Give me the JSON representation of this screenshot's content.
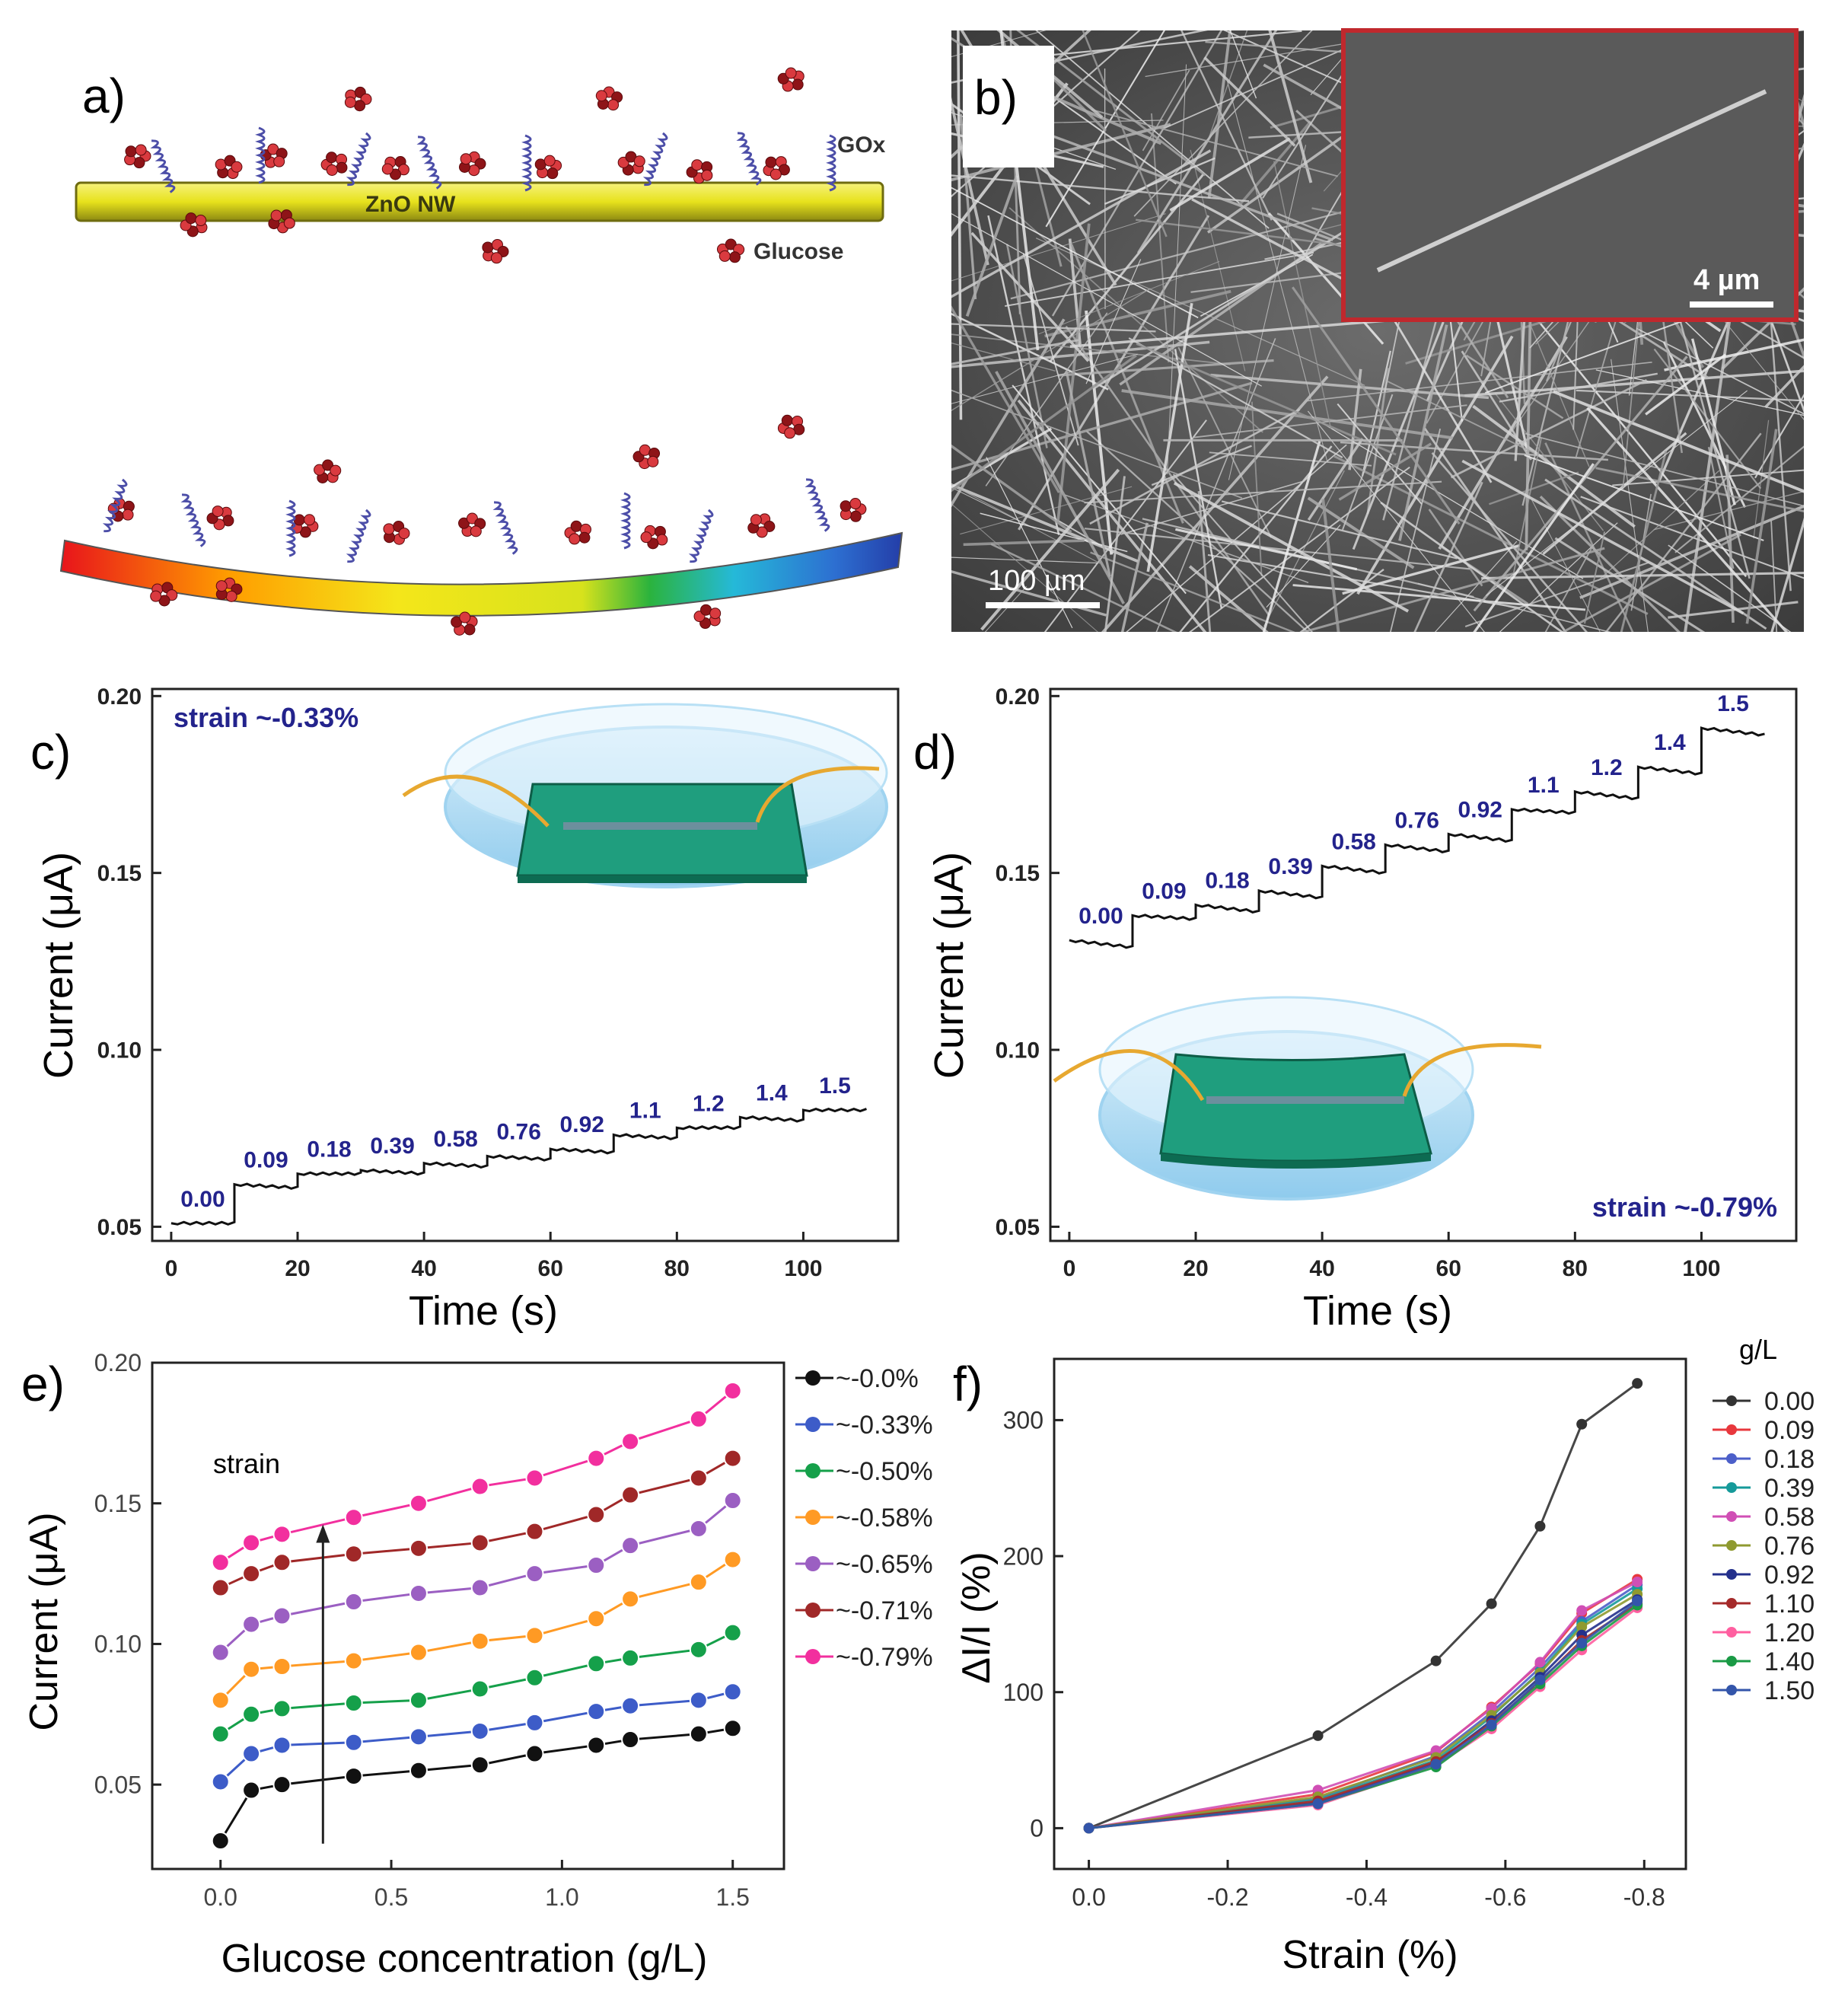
{
  "panels": {
    "a": {
      "letter": "a)",
      "labels": {
        "gox": "GOx",
        "nw": "ZnO NW",
        "glucose": "Glucose"
      }
    },
    "b": {
      "letter": "b)",
      "scale_main": "100 µm",
      "scale_inset": "4 µm"
    }
  },
  "chart_data": [
    {
      "id": "c",
      "letter": "c)",
      "type": "line",
      "xlabel": "Time (s)",
      "ylabel": "Current (μA)",
      "xlim": [
        -3,
        115
      ],
      "ylim": [
        0.046,
        0.202
      ],
      "xticks": [
        0,
        20,
        40,
        60,
        80,
        100
      ],
      "yticks": [
        0.05,
        0.1,
        0.15,
        0.2
      ],
      "annotation": "strain ~-0.33%",
      "steps": [
        {
          "label": "0.00",
          "t0": 0,
          "t1": 10,
          "y": 0.051,
          "ye": 0.051
        },
        {
          "label": "0.09",
          "t0": 10,
          "t1": 20,
          "y": 0.062,
          "ye": 0.061
        },
        {
          "label": "0.18",
          "t0": 20,
          "t1": 30,
          "y": 0.065,
          "ye": 0.065
        },
        {
          "label": "0.39",
          "t0": 30,
          "t1": 40,
          "y": 0.066,
          "ye": 0.065
        },
        {
          "label": "0.58",
          "t0": 40,
          "t1": 50,
          "y": 0.068,
          "ye": 0.067
        },
        {
          "label": "0.76",
          "t0": 50,
          "t1": 60,
          "y": 0.07,
          "ye": 0.069
        },
        {
          "label": "0.92",
          "t0": 60,
          "t1": 70,
          "y": 0.072,
          "ye": 0.071
        },
        {
          "label": "1.1",
          "t0": 70,
          "t1": 80,
          "y": 0.076,
          "ye": 0.075
        },
        {
          "label": "1.2",
          "t0": 80,
          "t1": 90,
          "y": 0.078,
          "ye": 0.078
        },
        {
          "label": "1.4",
          "t0": 90,
          "t1": 100,
          "y": 0.081,
          "ye": 0.08
        },
        {
          "label": "1.5",
          "t0": 100,
          "t1": 110,
          "y": 0.083,
          "ye": 0.083
        }
      ]
    },
    {
      "id": "d",
      "letter": "d)",
      "type": "line",
      "xlabel": "Time (s)",
      "ylabel": "Current (μA)",
      "xlim": [
        -3,
        115
      ],
      "ylim": [
        0.046,
        0.202
      ],
      "xticks": [
        0,
        20,
        40,
        60,
        80,
        100
      ],
      "yticks": [
        0.05,
        0.1,
        0.15,
        0.2
      ],
      "annotation": "strain ~-0.79%",
      "steps": [
        {
          "label": "0.00",
          "t0": 0,
          "t1": 10,
          "y": 0.131,
          "ye": 0.129
        },
        {
          "label": "0.09",
          "t0": 10,
          "t1": 20,
          "y": 0.138,
          "ye": 0.137
        },
        {
          "label": "0.18",
          "t0": 20,
          "t1": 30,
          "y": 0.141,
          "ye": 0.139
        },
        {
          "label": "0.39",
          "t0": 30,
          "t1": 40,
          "y": 0.145,
          "ye": 0.143
        },
        {
          "label": "0.58",
          "t0": 40,
          "t1": 50,
          "y": 0.152,
          "ye": 0.15
        },
        {
          "label": "0.76",
          "t0": 50,
          "t1": 60,
          "y": 0.158,
          "ye": 0.156
        },
        {
          "label": "0.92",
          "t0": 60,
          "t1": 70,
          "y": 0.161,
          "ye": 0.159
        },
        {
          "label": "1.1",
          "t0": 70,
          "t1": 80,
          "y": 0.168,
          "ye": 0.167
        },
        {
          "label": "1.2",
          "t0": 80,
          "t1": 90,
          "y": 0.173,
          "ye": 0.171
        },
        {
          "label": "1.4",
          "t0": 90,
          "t1": 100,
          "y": 0.18,
          "ye": 0.178
        },
        {
          "label": "1.5",
          "t0": 100,
          "t1": 110,
          "y": 0.191,
          "ye": 0.189
        }
      ]
    },
    {
      "id": "e",
      "letter": "e)",
      "type": "line",
      "xlabel": "Glucose concentration (g/L)",
      "ylabel": "Current (μA)",
      "xlim": [
        -0.2,
        1.65
      ],
      "ylim": [
        0.02,
        0.2
      ],
      "xticks": [
        0.0,
        0.5,
        1.0,
        1.5
      ],
      "yticks": [
        0.05,
        0.1,
        0.15,
        0.2
      ],
      "annotation": "strain",
      "x": [
        0,
        0.09,
        0.18,
        0.39,
        0.58,
        0.76,
        0.92,
        1.1,
        1.2,
        1.4,
        1.5
      ],
      "series": [
        {
          "name": "~-0.0%",
          "color": "#111111",
          "values": [
            0.03,
            0.048,
            0.05,
            0.053,
            0.055,
            0.057,
            0.061,
            0.064,
            0.066,
            0.068,
            0.07
          ]
        },
        {
          "name": "~-0.33%",
          "color": "#3d5cc8",
          "values": [
            0.051,
            0.061,
            0.064,
            0.065,
            0.067,
            0.069,
            0.072,
            0.076,
            0.078,
            0.08,
            0.083
          ]
        },
        {
          "name": "~-0.50%",
          "color": "#15a04a",
          "values": [
            0.068,
            0.075,
            0.077,
            0.079,
            0.08,
            0.084,
            0.088,
            0.093,
            0.095,
            0.098,
            0.104
          ]
        },
        {
          "name": "~-0.58%",
          "color": "#ff9a24",
          "values": [
            0.08,
            0.091,
            0.092,
            0.094,
            0.097,
            0.101,
            0.103,
            0.109,
            0.116,
            0.122,
            0.13
          ]
        },
        {
          "name": "~-0.65%",
          "color": "#9b5fc2",
          "values": [
            0.097,
            0.107,
            0.11,
            0.115,
            0.118,
            0.12,
            0.125,
            0.128,
            0.135,
            0.141,
            0.151
          ]
        },
        {
          "name": "~-0.71%",
          "color": "#a02828",
          "values": [
            0.12,
            0.125,
            0.129,
            0.132,
            0.134,
            0.136,
            0.14,
            0.146,
            0.153,
            0.159,
            0.166
          ]
        },
        {
          "name": "~-0.79%",
          "color": "#f22f9e",
          "values": [
            0.129,
            0.136,
            0.139,
            0.145,
            0.15,
            0.156,
            0.159,
            0.166,
            0.172,
            0.18,
            0.19
          ]
        }
      ]
    },
    {
      "id": "f",
      "letter": "f)",
      "type": "line",
      "xlabel": "Strain (%)",
      "ylabel": "ΔI/I (%)",
      "legend_title": "g/L",
      "xlim": [
        0.05,
        -0.86
      ],
      "ylim": [
        -30,
        345
      ],
      "xticks": [
        0.0,
        -0.2,
        -0.4,
        -0.6,
        -0.8
      ],
      "xtick_labels": [
        "0.0",
        "-0.2",
        "-0.4",
        "-0.6",
        "-0.8"
      ],
      "yticks": [
        0,
        100,
        200,
        300
      ],
      "x": [
        0,
        -0.33,
        -0.5,
        -0.58,
        -0.65,
        -0.71,
        -0.79
      ],
      "series": [
        {
          "name": "0.00",
          "color": "#333333",
          "values": [
            0,
            68,
            123,
            165,
            222,
            297,
            327
          ]
        },
        {
          "name": "0.09",
          "color": "#e8383d",
          "values": [
            0,
            25,
            56,
            89,
            121,
            158,
            183
          ]
        },
        {
          "name": "0.18",
          "color": "#4c5fc9",
          "values": [
            0,
            22,
            53,
            85,
            118,
            152,
            179
          ]
        },
        {
          "name": "0.39",
          "color": "#169a9a",
          "values": [
            0,
            21,
            50,
            82,
            115,
            150,
            176
          ]
        },
        {
          "name": "0.58",
          "color": "#d04fb5",
          "values": [
            0,
            28,
            57,
            88,
            122,
            160,
            181
          ]
        },
        {
          "name": "0.76",
          "color": "#8f9a30",
          "values": [
            0,
            23,
            52,
            83,
            114,
            148,
            172
          ]
        },
        {
          "name": "0.92",
          "color": "#24308c",
          "values": [
            0,
            19,
            48,
            79,
            111,
            142,
            168
          ]
        },
        {
          "name": "1.10",
          "color": "#a52a2a",
          "values": [
            0,
            20,
            49,
            77,
            108,
            138,
            165
          ]
        },
        {
          "name": "1.20",
          "color": "#ff5fa0",
          "values": [
            0,
            17,
            46,
            73,
            104,
            131,
            162
          ]
        },
        {
          "name": "1.40",
          "color": "#1a9a45",
          "values": [
            0,
            18,
            45,
            75,
            106,
            134,
            164
          ]
        },
        {
          "name": "1.50",
          "color": "#3355aa",
          "values": [
            0,
            18,
            47,
            76,
            109,
            136,
            167
          ]
        }
      ]
    }
  ]
}
